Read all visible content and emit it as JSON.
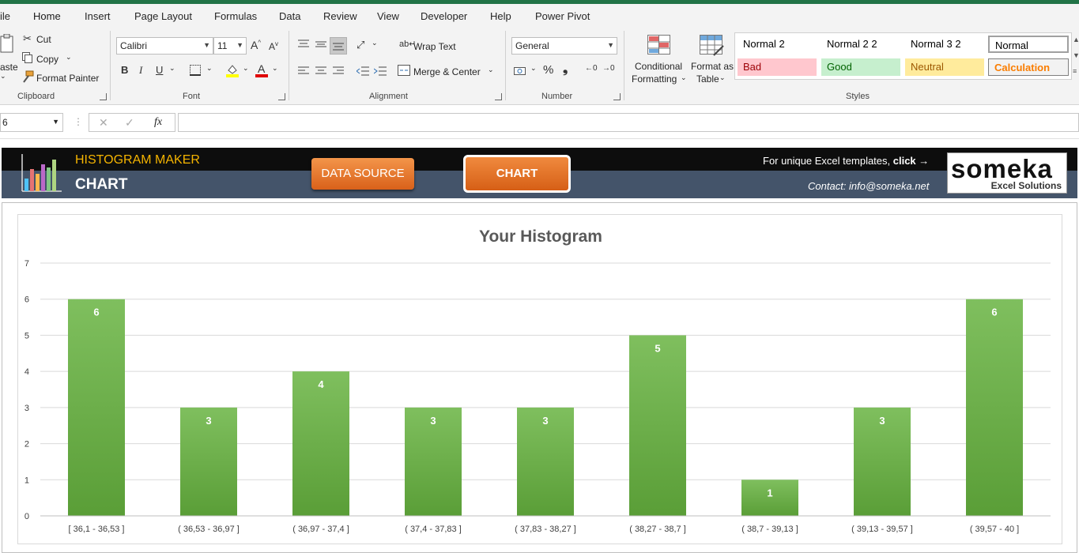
{
  "ribbon": {
    "tabs": [
      "ile",
      "Home",
      "Insert",
      "Page Layout",
      "Formulas",
      "Data",
      "Review",
      "View",
      "Developer",
      "Help",
      "Power Pivot"
    ],
    "clipboard": {
      "paste": "aste",
      "cut": "Cut",
      "copy": "Copy",
      "format_painter": "Format Painter",
      "label": "Clipboard"
    },
    "font": {
      "name": "Calibri",
      "size": "11",
      "bold": "B",
      "italic": "I",
      "underline": "U",
      "label": "Font"
    },
    "alignment": {
      "wrap_text": "Wrap Text",
      "merge_center": "Merge & Center",
      "label": "Alignment"
    },
    "number": {
      "format": "General",
      "label": "Number"
    },
    "conditional_formatting": [
      "Conditional",
      "Formatting"
    ],
    "format_as_table": [
      "Format as",
      "Table"
    ],
    "styles": {
      "label": "Styles",
      "cells": [
        {
          "name": "Normal 2",
          "bg": "#ffffff",
          "fg": "#000000"
        },
        {
          "name": "Normal 2 2",
          "bg": "#ffffff",
          "fg": "#000000"
        },
        {
          "name": "Normal 3 2",
          "bg": "#ffffff",
          "fg": "#000000"
        },
        {
          "name": "Normal",
          "bg": "#ffffff",
          "fg": "#000000"
        },
        {
          "name": "Bad",
          "bg": "#ffc7ce",
          "fg": "#9c0006"
        },
        {
          "name": "Good",
          "bg": "#c6efce",
          "fg": "#006100"
        },
        {
          "name": "Neutral",
          "bg": "#ffeb9c",
          "fg": "#9c5700"
        },
        {
          "name": "Calculation",
          "bg": "#f2f2f2",
          "fg": "#fa7d00"
        }
      ]
    }
  },
  "formula_bar": {
    "name_box": "6",
    "fx": "fx",
    "value": ""
  },
  "banner": {
    "title": "HISTOGRAM MAKER",
    "subtitle": "CHART",
    "data_source_button": "DATA SOURCE",
    "chart_button": "CHART",
    "promo_prefix": "For unique Excel templates, ",
    "promo_link": "click →",
    "contact": "Contact: info@someka.net",
    "logo_word": "someka",
    "logo_sub": "Excel Solutions"
  },
  "chart_data": {
    "type": "bar",
    "title": "Your Histogram",
    "categories": [
      "[ 36,1 - 36,53 ]",
      "( 36,53 - 36,97 ]",
      "( 36,97 - 37,4 ]",
      "( 37,4 - 37,83 ]",
      "( 37,83 - 38,27 ]",
      "( 38,27 - 38,7 ]",
      "( 38,7 - 39,13 ]",
      "( 39,13 - 39,57 ]",
      "( 39,57 - 40 ]"
    ],
    "values": [
      6,
      3,
      4,
      3,
      3,
      5,
      1,
      3,
      6
    ],
    "ylim": [
      0,
      7
    ],
    "yticks": [
      0,
      1,
      2,
      3,
      4,
      5,
      6,
      7
    ],
    "grid": true,
    "bar_color_top": "#7fbf5e",
    "bar_color_bottom": "#5a9e37"
  }
}
